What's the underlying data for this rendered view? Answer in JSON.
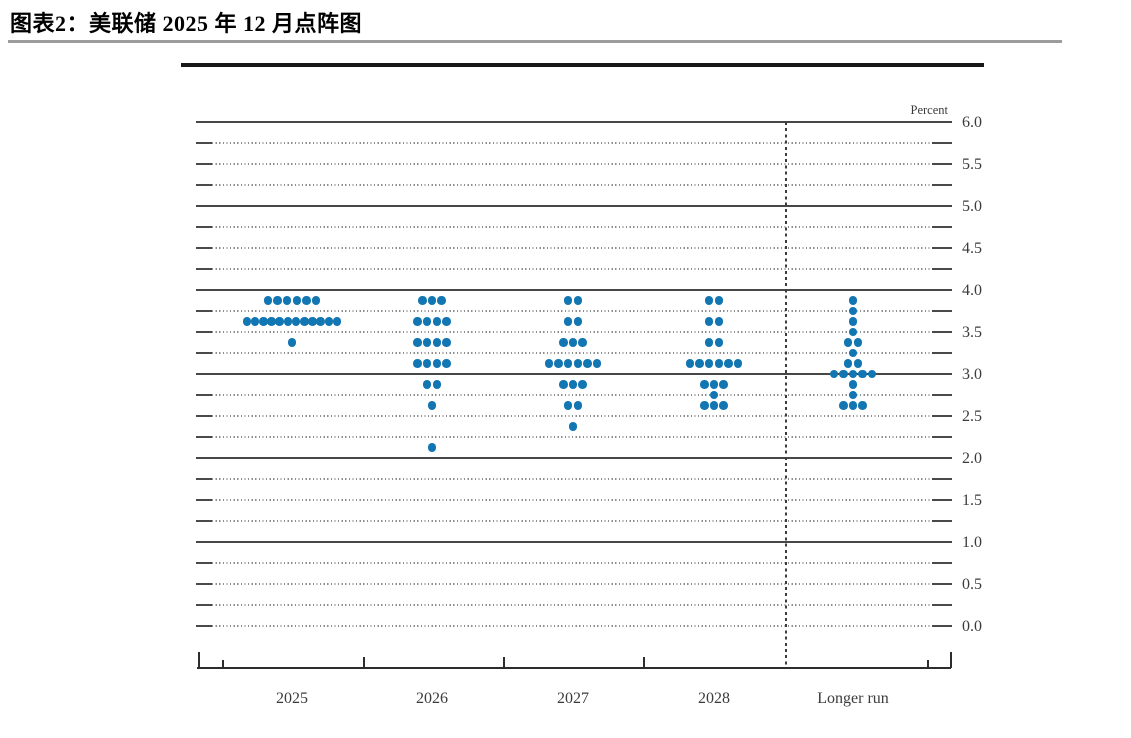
{
  "header": {
    "title": "图表2：美联储 2025 年 12 月点阵图"
  },
  "chart_data": {
    "type": "scatter",
    "subtype": "fomc-dot-plot",
    "title": "图表2：美联储 2025 年 12 月点阵图",
    "xlabel": "",
    "ylabel": "Percent",
    "ylim": [
      0.0,
      6.0
    ],
    "y_grid_minor_step": 0.25,
    "y_label_step": 0.5,
    "y_tick_labels": [
      "6.0",
      "5.5",
      "5.0",
      "4.5",
      "4.0",
      "3.5",
      "3.0",
      "2.5",
      "2.0",
      "1.5",
      "1.0",
      "0.5",
      "0.0"
    ],
    "solid_line_values": [
      6.0,
      5.0,
      4.0,
      3.0,
      2.0,
      1.0
    ],
    "grid": "on",
    "legend": "none",
    "dot_color": "#1276b2",
    "categories": [
      "2025",
      "2026",
      "2027",
      "2028",
      "Longer run"
    ],
    "series": [
      {
        "name": "2025",
        "dots": [
          {
            "rate": 3.875,
            "count": 6
          },
          {
            "rate": 3.625,
            "count": 12
          },
          {
            "rate": 3.375,
            "count": 1
          }
        ]
      },
      {
        "name": "2026",
        "dots": [
          {
            "rate": 3.875,
            "count": 3
          },
          {
            "rate": 3.625,
            "count": 4
          },
          {
            "rate": 3.375,
            "count": 4
          },
          {
            "rate": 3.125,
            "count": 4
          },
          {
            "rate": 2.875,
            "count": 2
          },
          {
            "rate": 2.625,
            "count": 1
          },
          {
            "rate": 2.125,
            "count": 1
          }
        ]
      },
      {
        "name": "2027",
        "dots": [
          {
            "rate": 3.875,
            "count": 2
          },
          {
            "rate": 3.625,
            "count": 2
          },
          {
            "rate": 3.375,
            "count": 3
          },
          {
            "rate": 3.125,
            "count": 6
          },
          {
            "rate": 2.875,
            "count": 3
          },
          {
            "rate": 2.625,
            "count": 2
          },
          {
            "rate": 2.375,
            "count": 1
          }
        ]
      },
      {
        "name": "2028",
        "dots": [
          {
            "rate": 3.875,
            "count": 2
          },
          {
            "rate": 3.625,
            "count": 2
          },
          {
            "rate": 3.375,
            "count": 2
          },
          {
            "rate": 3.125,
            "count": 6
          },
          {
            "rate": 2.875,
            "count": 3
          },
          {
            "rate": 2.75,
            "count": 1
          },
          {
            "rate": 2.625,
            "count": 3
          }
        ]
      },
      {
        "name": "Longer run",
        "dots": [
          {
            "rate": 3.875,
            "count": 1
          },
          {
            "rate": 3.75,
            "count": 1
          },
          {
            "rate": 3.625,
            "count": 1
          },
          {
            "rate": 3.5,
            "count": 1
          },
          {
            "rate": 3.375,
            "count": 2
          },
          {
            "rate": 3.25,
            "count": 1
          },
          {
            "rate": 3.125,
            "count": 2
          },
          {
            "rate": 3.0,
            "count": 5
          },
          {
            "rate": 2.875,
            "count": 1
          },
          {
            "rate": 2.75,
            "count": 1
          },
          {
            "rate": 2.625,
            "count": 3
          }
        ]
      }
    ]
  }
}
